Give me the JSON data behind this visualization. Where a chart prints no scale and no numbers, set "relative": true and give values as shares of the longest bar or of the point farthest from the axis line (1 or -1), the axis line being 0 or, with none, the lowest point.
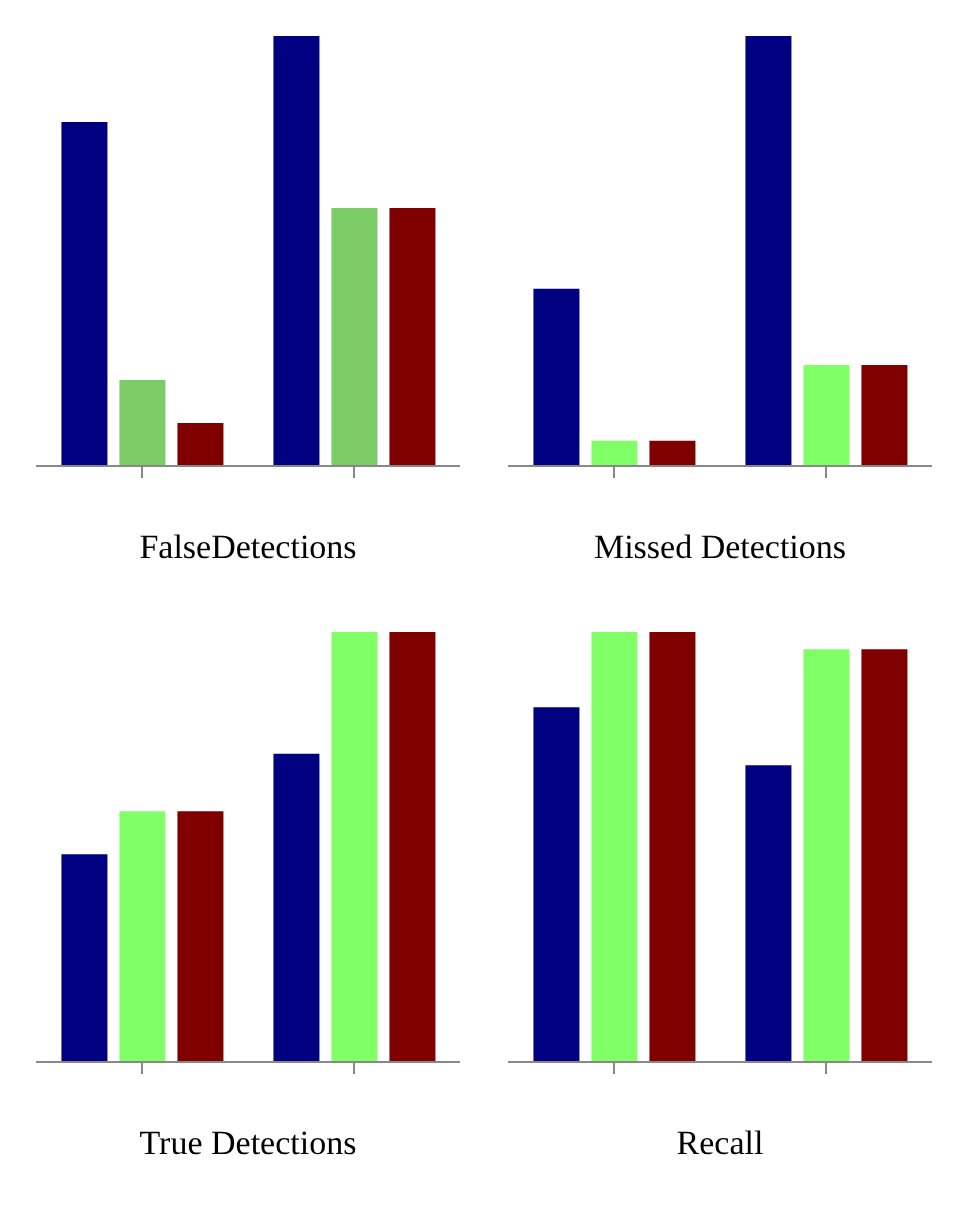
{
  "chart_data": [
    {
      "type": "bar",
      "title": "FalseDetections",
      "categories": [
        null,
        null
      ],
      "relative": true,
      "series": [
        {
          "color": "#000080",
          "values": [
            0.8,
            1
          ]
        },
        {
          "color": "#7ccc66",
          "values": [
            0.2,
            0.6
          ]
        },
        {
          "color": "#800000",
          "values": [
            0.1,
            0.6
          ]
        }
      ]
    },
    {
      "type": "bar",
      "title": "Missed Detections",
      "categories": [
        null,
        null
      ],
      "relative": true,
      "series": [
        {
          "color": "#000080",
          "values": [
            0.412,
            1
          ]
        },
        {
          "color": "#80ff66",
          "values": [
            0.059,
            0.235
          ]
        },
        {
          "color": "#800000",
          "values": [
            0.059,
            0.235
          ]
        }
      ]
    },
    {
      "type": "bar",
      "title": "True Detections",
      "categories": [
        null,
        null
      ],
      "relative": true,
      "series": [
        {
          "color": "#000080",
          "values": [
            0.483,
            0.717
          ]
        },
        {
          "color": "#80ff66",
          "values": [
            0.583,
            1
          ]
        },
        {
          "color": "#800000",
          "values": [
            0.583,
            1
          ]
        }
      ]
    },
    {
      "type": "bar",
      "title": "Recall",
      "categories": [
        null,
        null
      ],
      "relative": true,
      "series": [
        {
          "color": "#000080",
          "values": [
            0.825,
            0.69
          ]
        },
        {
          "color": "#80ff66",
          "values": [
            1,
            0.96
          ]
        },
        {
          "color": "#800000",
          "values": [
            1,
            0.96
          ]
        }
      ]
    }
  ]
}
